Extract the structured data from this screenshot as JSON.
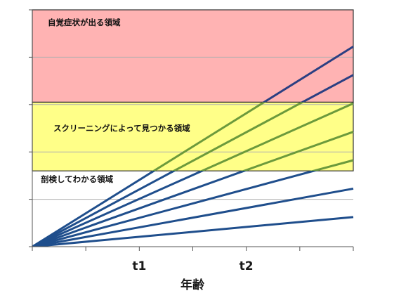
{
  "chart_data": {
    "type": "line",
    "title": "",
    "xlabel": "年齢",
    "ylabel": "",
    "x_ticks": [
      {
        "label": "t1",
        "value": 4
      },
      {
        "label": "t2",
        "value": 8
      }
    ],
    "xlim": [
      0,
      12
    ],
    "ylim": [
      0,
      100
    ],
    "grid": true,
    "regions": [
      {
        "label": "自覚症状が出る領域",
        "y_from": 61,
        "y_to": 100,
        "color": "#ffb3b3"
      },
      {
        "label": "スクリーニングによって見つかる領域",
        "y_from": 32,
        "y_to": 61,
        "color": "#ffff88"
      },
      {
        "label": "剖検してわかる領域",
        "y_from": 0,
        "y_to": 32,
        "color": "#ffffff"
      }
    ],
    "series": [
      {
        "x": [
          0,
          12
        ],
        "y": [
          0,
          84.5
        ]
      },
      {
        "x": [
          0,
          12
        ],
        "y": [
          0,
          72.5
        ]
      },
      {
        "x": [
          0,
          12
        ],
        "y": [
          0,
          60.5
        ]
      },
      {
        "x": [
          0,
          12
        ],
        "y": [
          0,
          48.5
        ]
      },
      {
        "x": [
          0,
          12
        ],
        "y": [
          0,
          36.5
        ]
      },
      {
        "x": [
          0,
          12
        ],
        "y": [
          0,
          24.5
        ]
      },
      {
        "x": [
          0,
          12
        ],
        "y": [
          0,
          12.5
        ]
      }
    ],
    "colors": {
      "line_in_white": "#1f4e8c",
      "line_in_yellow": "#6c9a3c",
      "line_in_pink": "#2b3f82",
      "region_border": "#333333",
      "grid": "#b0b0b0"
    }
  }
}
